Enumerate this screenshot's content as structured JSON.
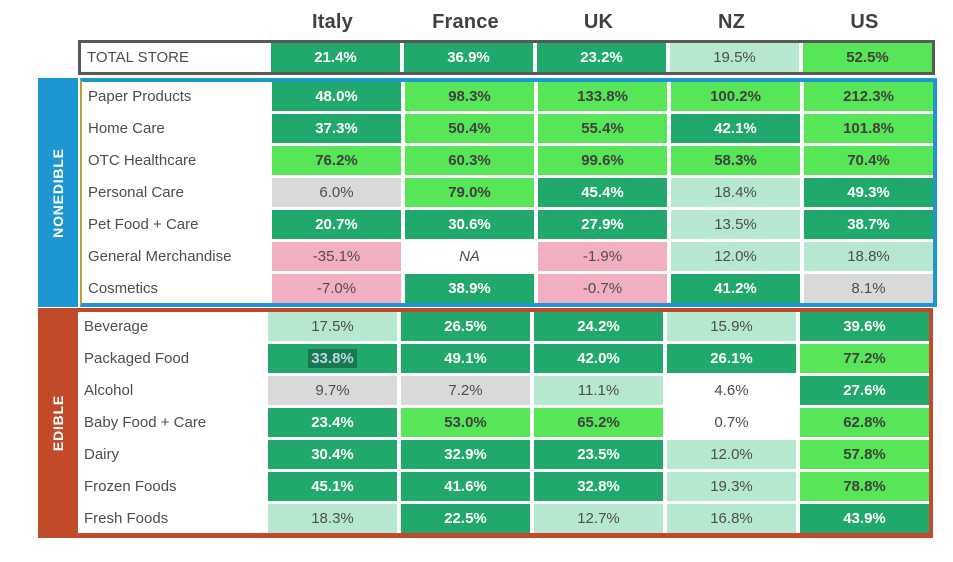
{
  "chart_data": {
    "type": "heatmap",
    "columns": [
      "Italy",
      "France",
      "UK",
      "NZ",
      "US"
    ],
    "total_row": {
      "label": "TOTAL STORE",
      "cells": [
        {
          "text": "21.4%",
          "style": "dark-green"
        },
        {
          "text": "36.9%",
          "style": "dark-green"
        },
        {
          "text": "23.2%",
          "style": "dark-green"
        },
        {
          "text": "19.5%",
          "style": "mint"
        },
        {
          "text": "52.5%",
          "style": "bright-green"
        }
      ]
    },
    "sections": [
      {
        "name": "NONEDIBLE",
        "rows": [
          {
            "label": "Paper Products",
            "cells": [
              {
                "text": "48.0%",
                "style": "dark-green"
              },
              {
                "text": "98.3%",
                "style": "bright-green"
              },
              {
                "text": "133.8%",
                "style": "bright-green"
              },
              {
                "text": "100.2%",
                "style": "bright-green"
              },
              {
                "text": "212.3%",
                "style": "bright-green"
              }
            ]
          },
          {
            "label": "Home Care",
            "cells": [
              {
                "text": "37.3%",
                "style": "dark-green"
              },
              {
                "text": "50.4%",
                "style": "bright-green"
              },
              {
                "text": "55.4%",
                "style": "bright-green"
              },
              {
                "text": "42.1%",
                "style": "dark-green"
              },
              {
                "text": "101.8%",
                "style": "bright-green"
              }
            ]
          },
          {
            "label": "OTC Healthcare",
            "cells": [
              {
                "text": "76.2%",
                "style": "bright-green"
              },
              {
                "text": "60.3%",
                "style": "bright-green"
              },
              {
                "text": "99.6%",
                "style": "bright-green"
              },
              {
                "text": "58.3%",
                "style": "bright-green"
              },
              {
                "text": "70.4%",
                "style": "bright-green"
              }
            ]
          },
          {
            "label": "Personal Care",
            "cells": [
              {
                "text": "6.0%",
                "style": "gray"
              },
              {
                "text": "79.0%",
                "style": "bright-green"
              },
              {
                "text": "45.4%",
                "style": "dark-green"
              },
              {
                "text": "18.4%",
                "style": "mint"
              },
              {
                "text": "49.3%",
                "style": "dark-green"
              }
            ]
          },
          {
            "label": "Pet Food + Care",
            "cells": [
              {
                "text": "20.7%",
                "style": "dark-green"
              },
              {
                "text": "30.6%",
                "style": "dark-green"
              },
              {
                "text": "27.9%",
                "style": "dark-green"
              },
              {
                "text": "13.5%",
                "style": "mint"
              },
              {
                "text": "38.7%",
                "style": "dark-green"
              }
            ]
          },
          {
            "label": "General Merchandise",
            "cells": [
              {
                "text": "-35.1%",
                "style": "pink"
              },
              {
                "text": "NA",
                "style": "plain",
                "italic": true
              },
              {
                "text": "-1.9%",
                "style": "pink"
              },
              {
                "text": "12.0%",
                "style": "mint"
              },
              {
                "text": "18.8%",
                "style": "mint"
              }
            ]
          },
          {
            "label": "Cosmetics",
            "cells": [
              {
                "text": "-7.0%",
                "style": "pink"
              },
              {
                "text": "38.9%",
                "style": "dark-green"
              },
              {
                "text": "-0.7%",
                "style": "pink"
              },
              {
                "text": "41.2%",
                "style": "dark-green"
              },
              {
                "text": "8.1%",
                "style": "gray"
              }
            ]
          }
        ]
      },
      {
        "name": "EDIBLE",
        "rows": [
          {
            "label": "Beverage",
            "cells": [
              {
                "text": "17.5%",
                "style": "mint"
              },
              {
                "text": "26.5%",
                "style": "dark-green"
              },
              {
                "text": "24.2%",
                "style": "dark-green"
              },
              {
                "text": "15.9%",
                "style": "mint"
              },
              {
                "text": "39.6%",
                "style": "dark-green"
              }
            ]
          },
          {
            "label": "Packaged Food",
            "cells": [
              {
                "text": "33.8%",
                "style": "dark-green",
                "selected": true
              },
              {
                "text": "49.1%",
                "style": "dark-green"
              },
              {
                "text": "42.0%",
                "style": "dark-green"
              },
              {
                "text": "26.1%",
                "style": "dark-green"
              },
              {
                "text": "77.2%",
                "style": "bright-green"
              }
            ]
          },
          {
            "label": "Alcohol",
            "cells": [
              {
                "text": "9.7%",
                "style": "gray"
              },
              {
                "text": "7.2%",
                "style": "gray"
              },
              {
                "text": "11.1%",
                "style": "mint"
              },
              {
                "text": "4.6%",
                "style": "plain"
              },
              {
                "text": "27.6%",
                "style": "dark-green"
              }
            ]
          },
          {
            "label": "Baby Food + Care",
            "cells": [
              {
                "text": "23.4%",
                "style": "dark-green"
              },
              {
                "text": "53.0%",
                "style": "bright-green"
              },
              {
                "text": "65.2%",
                "style": "bright-green"
              },
              {
                "text": "0.7%",
                "style": "plain"
              },
              {
                "text": "62.8%",
                "style": "bright-green"
              }
            ]
          },
          {
            "label": "Dairy",
            "cells": [
              {
                "text": "30.4%",
                "style": "dark-green"
              },
              {
                "text": "32.9%",
                "style": "dark-green"
              },
              {
                "text": "23.5%",
                "style": "dark-green"
              },
              {
                "text": "12.0%",
                "style": "mint"
              },
              {
                "text": "57.8%",
                "style": "bright-green"
              }
            ]
          },
          {
            "label": "Frozen Foods",
            "cells": [
              {
                "text": "45.1%",
                "style": "dark-green"
              },
              {
                "text": "41.6%",
                "style": "dark-green"
              },
              {
                "text": "32.8%",
                "style": "dark-green"
              },
              {
                "text": "19.3%",
                "style": "mint"
              },
              {
                "text": "78.8%",
                "style": "bright-green"
              }
            ]
          },
          {
            "label": "Fresh Foods",
            "cells": [
              {
                "text": "18.3%",
                "style": "mint"
              },
              {
                "text": "22.5%",
                "style": "dark-green"
              },
              {
                "text": "12.7%",
                "style": "mint"
              },
              {
                "text": "16.8%",
                "style": "mint"
              },
              {
                "text": "43.9%",
                "style": "dark-green"
              }
            ]
          }
        ]
      }
    ],
    "legend_note": "cell fill encodes growth magnitude",
    "cell_style_colors": {
      "dark-green": "#21A86B",
      "bright-green": "#57E657",
      "mint": "#B5E8CE",
      "gray": "#D9D9D9",
      "pink": "#F3AFC2",
      "plain": "#FFFFFF"
    }
  },
  "theme": {
    "dark_green": "#21A86B",
    "bright_green": "#57E657",
    "mint": "#B5E8CE",
    "gray": "#D9D9D9",
    "pink": "#F3AFC2",
    "blue": "#1E96D2",
    "red": "#C14A2B",
    "olive": "#B8A23A",
    "border_dark": "#595959",
    "header_text": "#404040",
    "text_dark": "#4D4D4D",
    "selection_bg": "#1A7850",
    "selection_text": "#B9D8E6"
  }
}
